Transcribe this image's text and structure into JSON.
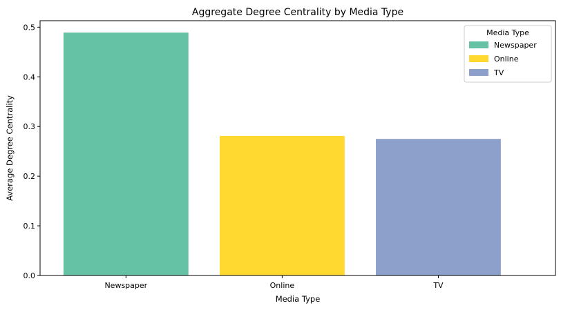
{
  "chart_data": {
    "type": "bar",
    "title": "Aggregate Degree Centrality by Media Type",
    "xlabel": "Media Type",
    "ylabel": "Average Degree Centrality",
    "categories": [
      "Newspaper",
      "Online",
      "TV"
    ],
    "values": [
      0.489,
      0.281,
      0.275
    ],
    "colors": [
      "#66c2a5",
      "#ffd92f",
      "#8da0cb"
    ],
    "ylim": [
      0,
      0.513
    ],
    "yticks": [
      0.0,
      0.1,
      0.2,
      0.3,
      0.4,
      0.5
    ],
    "ytick_labels": [
      "0.0",
      "0.1",
      "0.2",
      "0.3",
      "0.4",
      "0.5"
    ],
    "grid": false,
    "legend": {
      "title": "Media Type",
      "placement": "top-right",
      "entries": [
        "Newspaper",
        "Online",
        "TV"
      ]
    }
  }
}
